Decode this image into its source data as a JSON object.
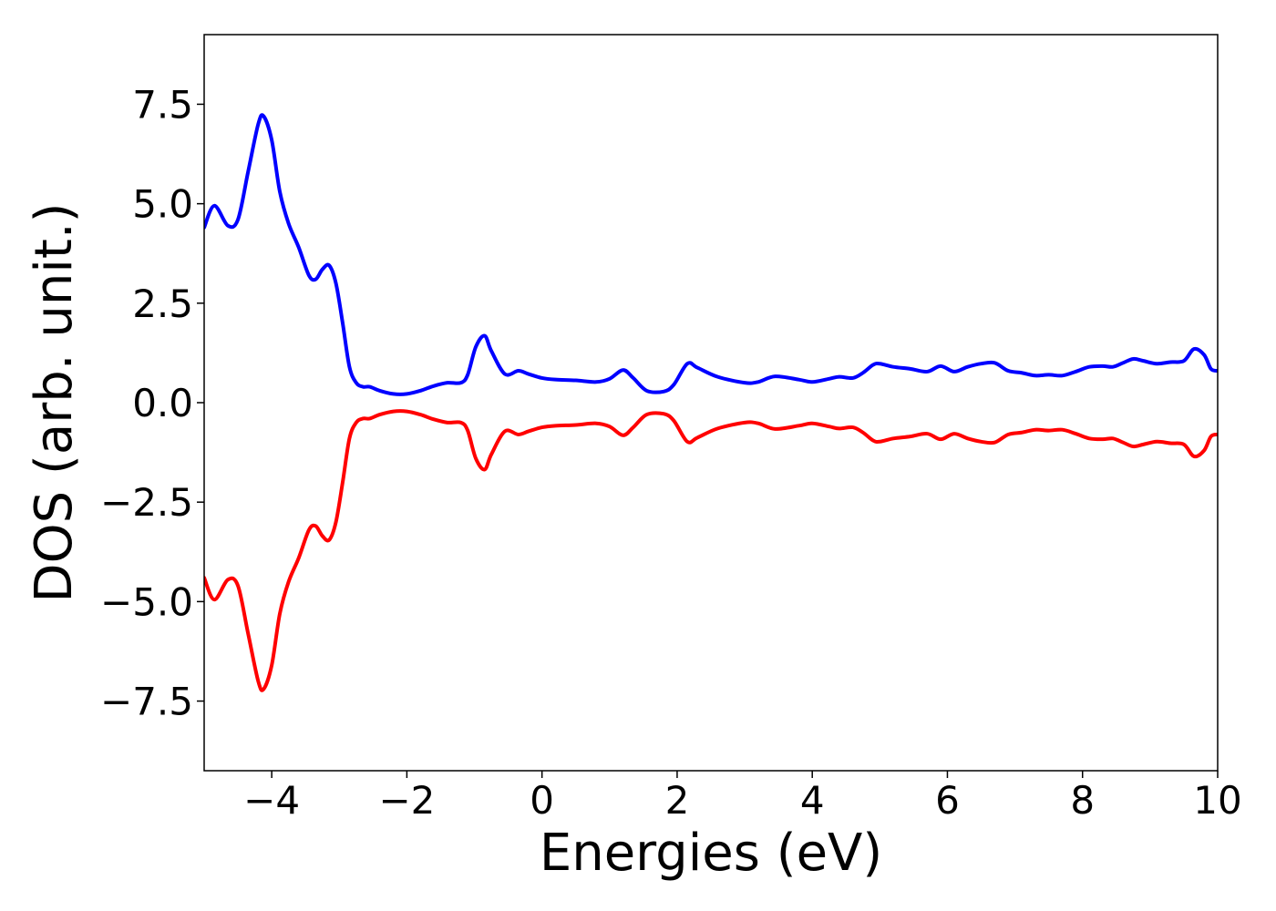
{
  "chart_data": {
    "type": "line",
    "xlabel": "Energies (eV)",
    "ylabel": "DOS (arb. unit.)",
    "xlim": [
      -5,
      10
    ],
    "ylim": [
      -9.25,
      9.25
    ],
    "grid": false,
    "legend": "none",
    "x_ticks": [
      -4,
      -2,
      0,
      2,
      4,
      6,
      8,
      10
    ],
    "x_tick_labels": [
      "−4",
      "−2",
      "0",
      "2",
      "4",
      "6",
      "8",
      "10"
    ],
    "y_ticks": [
      7.5,
      5.0,
      2.5,
      0.0,
      -2.5,
      -5.0,
      -7.5
    ],
    "y_tick_labels": [
      "7.5",
      "5.0",
      "2.5",
      "0.0",
      "−2.5",
      "−5.0",
      "−7.5"
    ],
    "series": [
      {
        "color": "#0000ff",
        "sign": 1,
        "x": [
          -5.0,
          -4.85,
          -4.65,
          -4.5,
          -4.35,
          -4.2,
          -4.12,
          -4.0,
          -3.88,
          -3.75,
          -3.6,
          -3.45,
          -3.35,
          -3.25,
          -3.15,
          -3.05,
          -2.95,
          -2.85,
          -2.75,
          -2.65,
          -2.55,
          -2.4,
          -2.2,
          -2.0,
          -1.8,
          -1.6,
          -1.4,
          -1.2,
          -1.1,
          -0.98,
          -0.85,
          -0.75,
          -0.55,
          -0.35,
          -0.2,
          0.0,
          0.2,
          0.5,
          0.8,
          1.0,
          1.2,
          1.35,
          1.55,
          1.8,
          1.95,
          2.15,
          2.3,
          2.6,
          3.0,
          3.2,
          3.45,
          3.8,
          4.0,
          4.25,
          4.4,
          4.6,
          4.75,
          4.9,
          5.0,
          5.2,
          5.45,
          5.7,
          5.9,
          6.1,
          6.3,
          6.5,
          6.7,
          6.9,
          7.1,
          7.3,
          7.5,
          7.7,
          7.9,
          8.1,
          8.3,
          8.45,
          8.6,
          8.75,
          8.9,
          9.1,
          9.3,
          9.5,
          9.65,
          9.8,
          9.9,
          10.0
        ],
        "y": [
          4.4,
          4.95,
          4.45,
          4.6,
          5.8,
          7.0,
          7.2,
          6.6,
          5.3,
          4.5,
          3.9,
          3.2,
          3.1,
          3.35,
          3.45,
          3.0,
          2.0,
          0.9,
          0.5,
          0.4,
          0.4,
          0.3,
          0.22,
          0.22,
          0.3,
          0.42,
          0.5,
          0.5,
          0.7,
          1.4,
          1.68,
          1.3,
          0.72,
          0.8,
          0.72,
          0.62,
          0.58,
          0.56,
          0.52,
          0.6,
          0.82,
          0.62,
          0.3,
          0.28,
          0.45,
          0.98,
          0.88,
          0.65,
          0.5,
          0.52,
          0.66,
          0.58,
          0.52,
          0.6,
          0.65,
          0.62,
          0.75,
          0.95,
          0.98,
          0.9,
          0.85,
          0.78,
          0.92,
          0.78,
          0.9,
          0.98,
          1.0,
          0.8,
          0.75,
          0.68,
          0.7,
          0.68,
          0.78,
          0.9,
          0.92,
          0.9,
          1.0,
          1.1,
          1.05,
          0.98,
          1.02,
          1.05,
          1.35,
          1.2,
          0.85,
          0.8
        ]
      },
      {
        "color": "#ff0000",
        "sign": -1,
        "x": [
          -5.0,
          -4.85,
          -4.65,
          -4.5,
          -4.35,
          -4.2,
          -4.12,
          -4.0,
          -3.88,
          -3.75,
          -3.6,
          -3.45,
          -3.35,
          -3.25,
          -3.15,
          -3.05,
          -2.95,
          -2.85,
          -2.75,
          -2.65,
          -2.55,
          -2.4,
          -2.2,
          -2.0,
          -1.8,
          -1.6,
          -1.4,
          -1.2,
          -1.1,
          -0.98,
          -0.85,
          -0.75,
          -0.55,
          -0.35,
          -0.2,
          0.0,
          0.2,
          0.5,
          0.8,
          1.0,
          1.2,
          1.35,
          1.55,
          1.8,
          1.95,
          2.15,
          2.3,
          2.6,
          3.0,
          3.2,
          3.45,
          3.8,
          4.0,
          4.25,
          4.4,
          4.6,
          4.75,
          4.9,
          5.0,
          5.2,
          5.45,
          5.7,
          5.9,
          6.1,
          6.3,
          6.5,
          6.7,
          6.9,
          7.1,
          7.3,
          7.5,
          7.7,
          7.9,
          8.1,
          8.3,
          8.45,
          8.6,
          8.75,
          8.9,
          9.1,
          9.3,
          9.5,
          9.65,
          9.8,
          9.9,
          10.0
        ],
        "y": [
          -4.4,
          -4.95,
          -4.45,
          -4.6,
          -5.8,
          -7.0,
          -7.2,
          -6.6,
          -5.3,
          -4.5,
          -3.9,
          -3.2,
          -3.1,
          -3.35,
          -3.45,
          -3.0,
          -2.0,
          -0.9,
          -0.5,
          -0.4,
          -0.4,
          -0.3,
          -0.22,
          -0.22,
          -0.3,
          -0.42,
          -0.5,
          -0.5,
          -0.7,
          -1.4,
          -1.68,
          -1.3,
          -0.72,
          -0.8,
          -0.72,
          -0.62,
          -0.58,
          -0.56,
          -0.52,
          -0.6,
          -0.82,
          -0.62,
          -0.3,
          -0.28,
          -0.45,
          -0.98,
          -0.88,
          -0.65,
          -0.5,
          -0.52,
          -0.66,
          -0.58,
          -0.52,
          -0.6,
          -0.65,
          -0.62,
          -0.75,
          -0.95,
          -0.98,
          -0.9,
          -0.85,
          -0.78,
          -0.92,
          -0.78,
          -0.9,
          -0.98,
          -1.0,
          -0.8,
          -0.75,
          -0.68,
          -0.7,
          -0.68,
          -0.78,
          -0.9,
          -0.92,
          -0.9,
          -1.0,
          -1.1,
          -1.05,
          -0.98,
          -1.02,
          -1.05,
          -1.35,
          -1.2,
          -0.85,
          -0.8
        ]
      }
    ]
  }
}
